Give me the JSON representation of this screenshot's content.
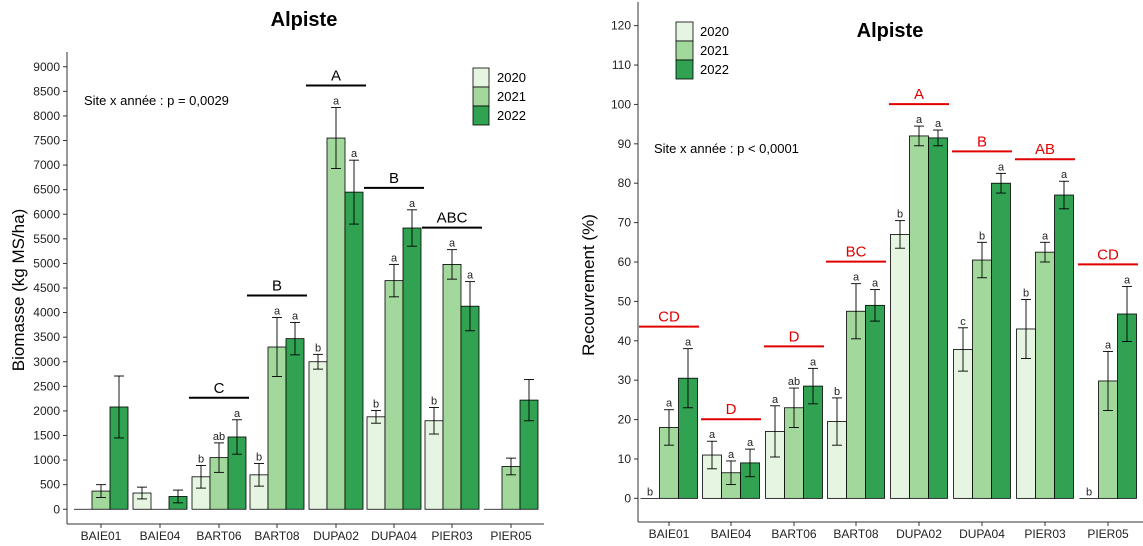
{
  "colors": {
    "2020": "#e6f5e1",
    "2021": "#a2d89c",
    "2022": "#31a252",
    "stroke": "#000000",
    "group_line_left": "#000000",
    "group_line_right": "#e00000"
  },
  "chart_data": [
    {
      "type": "bar",
      "title": "Alpiste",
      "ylabel": "Biomasse (kg MS/ha)",
      "xlabel": "",
      "ylim": [
        -300,
        9300
      ],
      "yticks": [
        0,
        500,
        1000,
        1500,
        2000,
        2500,
        3000,
        3500,
        4000,
        4500,
        5000,
        5500,
        6000,
        6500,
        7000,
        7500,
        8000,
        8500,
        9000
      ],
      "grid": false,
      "legend_position": "top-right",
      "annotation": "Site x année : p = 0,0029",
      "categories": [
        "BAIE01",
        "BAIE04",
        "BART06",
        "BART08",
        "DUPA02",
        "DUPA04",
        "PIER03",
        "PIER05"
      ],
      "series": [
        {
          "name": "2020",
          "values": [
            0,
            330,
            660,
            700,
            3000,
            1880,
            1800,
            0
          ],
          "errors": [
            0,
            120,
            230,
            230,
            150,
            130,
            270,
            0
          ],
          "letters": [
            "",
            "",
            "b",
            "b",
            "b",
            "b",
            "b",
            ""
          ]
        },
        {
          "name": "2021",
          "values": [
            370,
            0,
            1050,
            3300,
            7550,
            4650,
            4980,
            870
          ],
          "errors": [
            130,
            0,
            300,
            600,
            620,
            330,
            300,
            170
          ],
          "letters": [
            "",
            "",
            "ab",
            "a",
            "a",
            "a",
            "a",
            ""
          ]
        },
        {
          "name": "2022",
          "values": [
            2080,
            260,
            1470,
            3470,
            6450,
            5720,
            4130,
            2220
          ],
          "errors": [
            630,
            130,
            350,
            330,
            650,
            370,
            500,
            420
          ],
          "letters": [
            "",
            "",
            "a",
            "a",
            "a",
            "a",
            "a",
            ""
          ]
        }
      ],
      "group_letters": [
        "",
        "",
        "C",
        "B",
        "A",
        "B",
        "ABC",
        ""
      ]
    },
    {
      "type": "bar",
      "title": "Alpiste",
      "ylabel": "Recouvrement (%)",
      "xlabel": "",
      "ylim": [
        -6,
        126
      ],
      "yticks": [
        0,
        10,
        20,
        30,
        40,
        50,
        60,
        70,
        80,
        90,
        100,
        110,
        120
      ],
      "grid": false,
      "legend_position": "top-left",
      "annotation": "Site x année : p < 0,0001",
      "categories": [
        "BAIE01",
        "BAIE04",
        "BART06",
        "BART08",
        "DUPA02",
        "DUPA04",
        "PIER03",
        "PIER05"
      ],
      "series": [
        {
          "name": "2020",
          "values": [
            0,
            11,
            17,
            19.5,
            67,
            37.8,
            43,
            0
          ],
          "errors": [
            0,
            3.5,
            6.5,
            6,
            3.5,
            5.5,
            7.5,
            0
          ],
          "letters": [
            "b",
            "a",
            "a",
            "b",
            "b",
            "c",
            "b",
            "b"
          ]
        },
        {
          "name": "2021",
          "values": [
            18,
            6.5,
            23,
            47.5,
            92,
            60.5,
            62.5,
            29.8
          ],
          "errors": [
            4.5,
            3,
            5,
            7,
            2.5,
            4.5,
            2.5,
            7.5
          ],
          "letters": [
            "a",
            "a",
            "ab",
            "a",
            "a",
            "b",
            "a",
            "a"
          ]
        },
        {
          "name": "2022",
          "values": [
            30.5,
            9,
            28.5,
            49,
            91.5,
            80,
            77,
            46.8
          ],
          "errors": [
            7.5,
            3.5,
            4.5,
            4,
            2,
            2.5,
            3.5,
            7
          ],
          "letters": [
            "a",
            "a",
            "a",
            "a",
            "a",
            "a",
            "a",
            "a"
          ]
        }
      ],
      "group_letters": [
        "CD",
        "D",
        "D",
        "BC",
        "A",
        "B",
        "AB",
        "CD"
      ]
    }
  ]
}
